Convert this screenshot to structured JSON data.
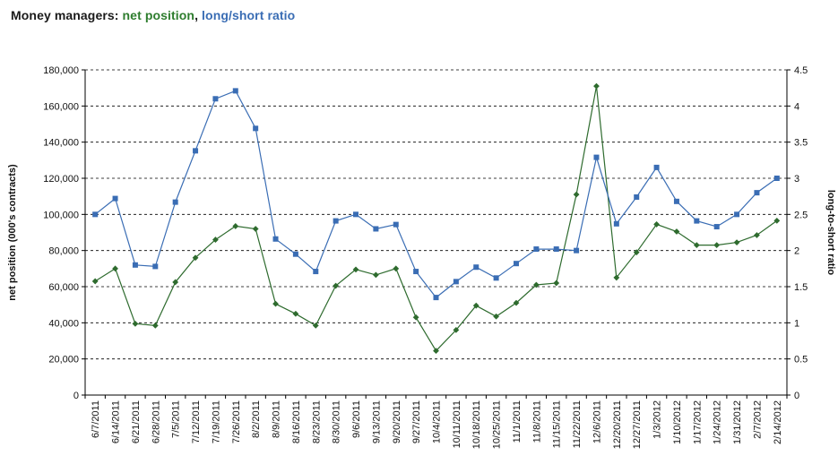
{
  "title": {
    "prefix": "Money managers: ",
    "part_green": "net position",
    "separator": ", ",
    "part_blue": "long/short ratio"
  },
  "colors": {
    "net_position": "#2e6b2e",
    "ratio": "#3a6db4",
    "grid": "#000000"
  },
  "chart_data": {
    "type": "line",
    "title": "Money managers: net position, long/short ratio",
    "categories": [
      "6/7/2011",
      "6/14/2011",
      "6/21/2011",
      "6/28/2011",
      "7/5/2011",
      "7/12/2011",
      "7/19/2011",
      "7/26/2011",
      "8/2/2011",
      "8/9/2011",
      "8/16/2011",
      "8/23/2011",
      "8/30/2011",
      "9/6/2011",
      "9/13/2011",
      "9/20/2011",
      "9/27/2011",
      "10/4/2011",
      "10/11/2011",
      "10/18/2011",
      "10/25/2011",
      "11/1/2011",
      "11/8/2011",
      "11/15/2011",
      "11/22/2011",
      "12/6/2011",
      "12/20/2011",
      "12/27/2011",
      "1/3/2012",
      "1/10/2012",
      "1/17/2012",
      "1/24/2012",
      "1/31/2012",
      "2/7/2012",
      "2/14/2012"
    ],
    "y_left": {
      "label": "net position (000's contracts)",
      "min": 0,
      "max": 180000,
      "step": 20000,
      "ticks": [
        "0",
        "20,000",
        "40,000",
        "60,000",
        "80,000",
        "100,000",
        "120,000",
        "140,000",
        "160,000",
        "180,000"
      ]
    },
    "y_right": {
      "label": "long-to-short ratio",
      "min": 0,
      "max": 4.5,
      "step": 0.5,
      "ticks": [
        "0",
        "0.5",
        "1",
        "1.5",
        "2",
        "2.5",
        "3",
        "3.5",
        "4",
        "4.5"
      ]
    },
    "grid": true,
    "series": [
      {
        "axis": "left",
        "marker": "diamond",
        "values": [
          63000,
          70000,
          39500,
          38500,
          62500,
          76000,
          86000,
          93500,
          92000,
          50500,
          45000,
          38500,
          60500,
          69500,
          66500,
          70000,
          43000,
          24500,
          36000,
          49500,
          43500,
          51000,
          61000,
          62000,
          111000,
          171000,
          65000,
          79000,
          94500,
          90500,
          83000,
          83000,
          84500,
          88500,
          96500
        ]
      },
      {
        "axis": "right",
        "marker": "square",
        "values": [
          2.5,
          2.72,
          1.8,
          1.78,
          2.67,
          3.38,
          4.1,
          4.21,
          3.69,
          2.16,
          1.95,
          1.71,
          2.41,
          2.5,
          2.3,
          2.36,
          1.71,
          1.35,
          1.57,
          1.77,
          1.62,
          1.82,
          2.02,
          2.02,
          2.0,
          3.29,
          2.37,
          2.74,
          3.15,
          2.68,
          2.41,
          2.33,
          2.5,
          2.8,
          3.0
        ]
      }
    ]
  }
}
